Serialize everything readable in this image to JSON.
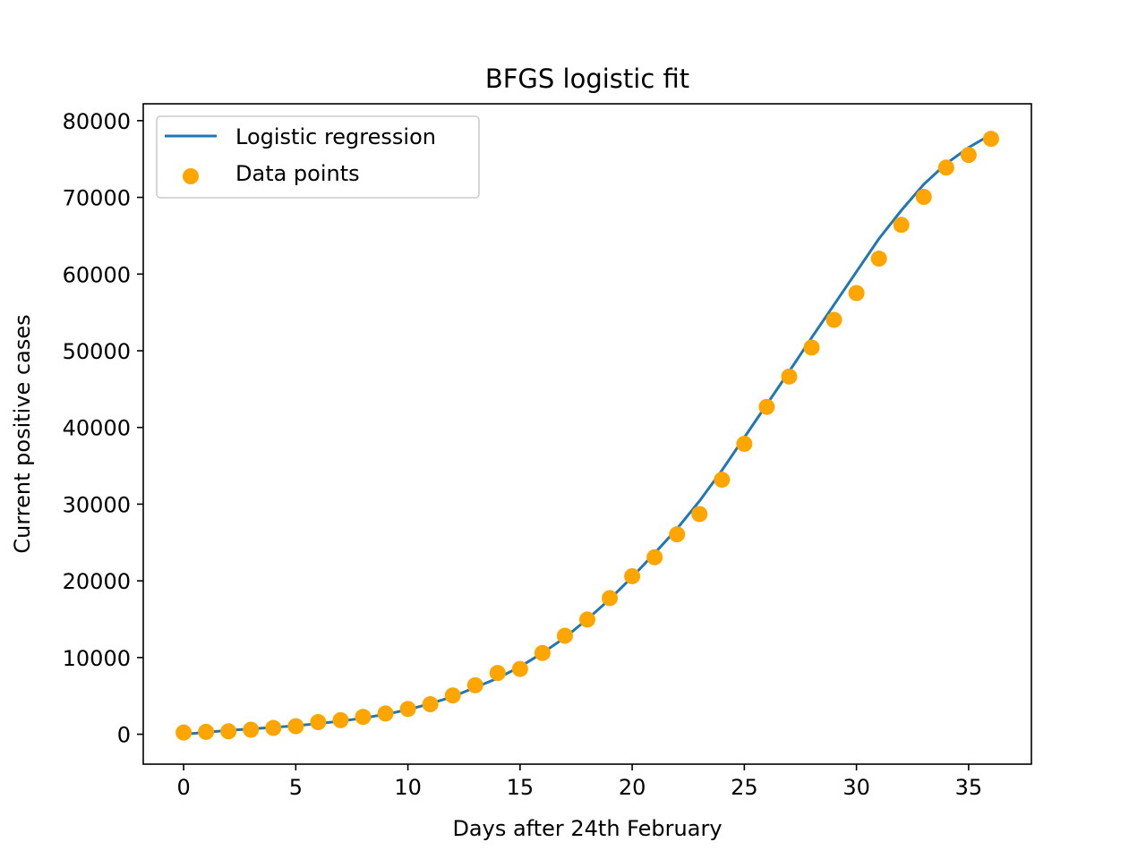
{
  "chart_data": {
    "type": "scatter",
    "title": "BFGS logistic fit",
    "xlabel": "Days after 24th February",
    "ylabel": "Current positive cases",
    "xlim": [
      -1.8,
      37.8
    ],
    "ylim": [
      -3900,
      82200
    ],
    "xticks": [
      0,
      5,
      10,
      15,
      20,
      25,
      30,
      35
    ],
    "yticks": [
      0,
      10000,
      20000,
      30000,
      40000,
      50000,
      60000,
      70000,
      80000
    ],
    "grid": false,
    "legend_position": "top-left",
    "series": [
      {
        "name": "Logistic regression",
        "kind": "line",
        "color": "#1f77b4",
        "x": [
          0,
          1,
          2,
          3,
          4,
          5,
          6,
          7,
          8,
          9,
          10,
          11,
          12,
          13,
          14,
          15,
          16,
          17,
          18,
          19,
          20,
          21,
          22,
          23,
          24,
          25,
          26,
          27,
          28,
          29,
          30,
          31,
          32,
          33,
          34,
          35,
          36
        ],
        "values": [
          0,
          250,
          500,
          700,
          900,
          1100,
          1400,
          1700,
          2100,
          2600,
          3200,
          4000,
          4900,
          6100,
          7300,
          8800,
          10600,
          12600,
          15000,
          17600,
          20500,
          23600,
          26800,
          30400,
          34400,
          38700,
          43000,
          47300,
          51700,
          56000,
          60300,
          64600,
          68300,
          71700,
          74400,
          76500,
          78200
        ]
      },
      {
        "name": "Data points",
        "kind": "scatter",
        "color": "#ffa500",
        "x": [
          0,
          1,
          2,
          3,
          4,
          5,
          6,
          7,
          8,
          9,
          10,
          11,
          12,
          13,
          14,
          15,
          16,
          17,
          18,
          19,
          20,
          21,
          22,
          23,
          24,
          25,
          26,
          27,
          28,
          29,
          30,
          31,
          32,
          33,
          34,
          35,
          36
        ],
        "values": [
          221,
          311,
          385,
          588,
          821,
          1049,
          1577,
          1835,
          2263,
          2706,
          3296,
          3916,
          5061,
          6387,
          7985,
          8514,
          10590,
          12839,
          14955,
          17750,
          20603,
          23073,
          26062,
          28710,
          33190,
          37860,
          42681,
          46638,
          50418,
          54030,
          57521,
          62013,
          66414,
          70065,
          73880,
          75528,
          77635
        ]
      }
    ]
  }
}
